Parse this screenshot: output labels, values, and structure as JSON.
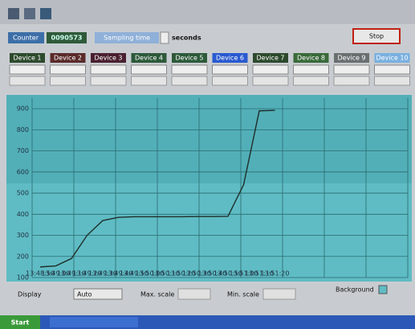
{
  "toolbar": {
    "counter_label": "Counter",
    "counter_value": "0090573",
    "sampling_button": "Sampling time",
    "sampling_unit": "seconds",
    "stop_button": "Stop"
  },
  "devices": [
    "Device 1",
    "Device 2",
    "Device 3",
    "Device 4",
    "Device 5",
    "Device 6",
    "Device 7",
    "Device 8",
    "Device 9",
    "Device 10"
  ],
  "chart_data": {
    "type": "line",
    "categories": [
      "13:48:50",
      "13:49:00",
      "13:49:10",
      "13:49:20",
      "13:49:30",
      "13:49:40",
      "13:49:50",
      "13:50:00",
      "13:50:10",
      "13:50:20",
      "13:50:30",
      "13:50:40",
      "13:50:50",
      "13:51:00",
      "13:51:10",
      "13:51:20"
    ],
    "series": [
      {
        "color": "#1e2e2a",
        "values": [
          150,
          155,
          190,
          300,
          370,
          385,
          388,
          388,
          388,
          388,
          389,
          389,
          390,
          540,
          890,
          892
        ]
      }
    ],
    "ylim": [
      100,
      950
    ],
    "yticks": [
      100,
      200,
      300,
      400,
      500,
      600,
      700,
      800,
      900
    ],
    "grid": true
  },
  "controls": {
    "display_label": "Display",
    "display_mode": "Auto",
    "max_scale_label": "Max. scale",
    "min_scale_label": "Min. scale",
    "background_label": "Background"
  },
  "taskbar": {
    "start": "Start"
  }
}
